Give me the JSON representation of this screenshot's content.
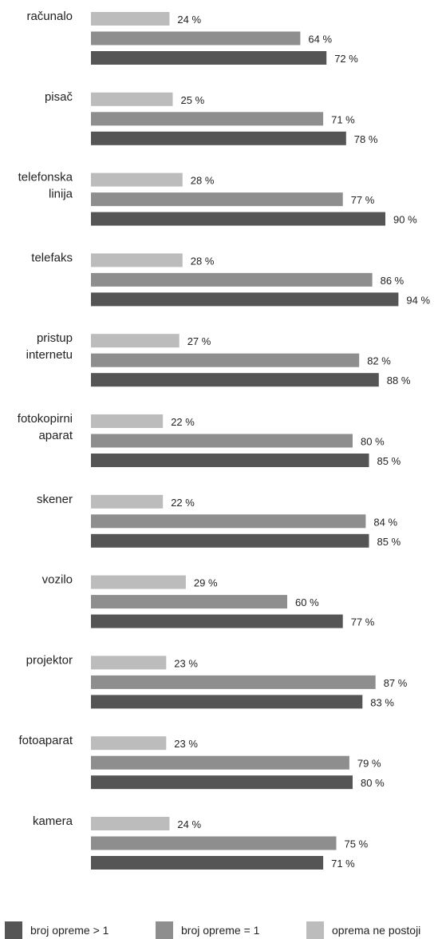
{
  "chart_data": {
    "type": "bar",
    "orientation": "horizontal",
    "categories": [
      [
        "računalo"
      ],
      [
        "pisač"
      ],
      [
        "telefonska",
        "linija"
      ],
      [
        "telefaks"
      ],
      [
        "pristup",
        "internetu"
      ],
      [
        "fotokopirni",
        "aparat"
      ],
      [
        "skener"
      ],
      [
        "vozilo"
      ],
      [
        "projektor"
      ],
      [
        "fotoaparat"
      ],
      [
        "kamera"
      ]
    ],
    "series": [
      {
        "name": "oprema ne postoji",
        "color": "#bcbcbc",
        "values": [
          24,
          25,
          28,
          28,
          27,
          22,
          22,
          29,
          23,
          23,
          24
        ]
      },
      {
        "name": "broj opreme = 1",
        "color": "#8e8e8e",
        "values": [
          64,
          71,
          77,
          86,
          82,
          80,
          84,
          60,
          87,
          79,
          75
        ]
      },
      {
        "name": "broj opreme > 1",
        "color": "#555555",
        "values": [
          72,
          78,
          90,
          94,
          88,
          85,
          85,
          77,
          83,
          80,
          71
        ]
      }
    ],
    "value_suffix": " %",
    "xlim": [
      0,
      100
    ],
    "grid": false,
    "legend": {
      "position": "bottom",
      "order": [
        "broj opreme > 1",
        "broj opreme = 1",
        "oprema ne postoji"
      ]
    }
  }
}
